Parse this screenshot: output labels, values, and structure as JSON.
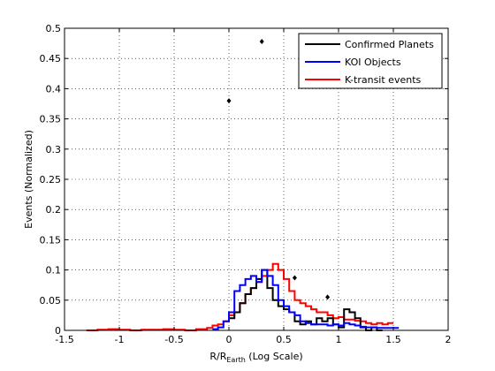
{
  "chart_data": {
    "type": "line",
    "title": "",
    "xlabel": {
      "main": "R/R",
      "sub": "Earth",
      "suffix": " (Log Scale)"
    },
    "ylabel": "Events (Normalized)",
    "xlim": [
      -1.5,
      2
    ],
    "ylim": [
      0,
      0.5
    ],
    "x_ticks": [
      -1.5,
      -1,
      -0.5,
      0,
      0.5,
      1,
      1.5,
      2
    ],
    "x_tick_labels": [
      "-1.5",
      "-1",
      "-0.5",
      "0",
      "0.5",
      "1",
      "1.5",
      "2"
    ],
    "y_ticks": [
      0,
      0.05,
      0.1,
      0.15,
      0.2,
      0.25,
      0.3,
      0.35,
      0.4,
      0.45,
      0.5
    ],
    "y_tick_labels": [
      "0",
      "0.05",
      "0.1",
      "0.15",
      "0.2",
      "0.25",
      "0.3",
      "0.35",
      "0.4",
      "0.45",
      "0.5"
    ],
    "grid": true,
    "legend_position": "top-right",
    "series": [
      {
        "name": "Confirmed Planets",
        "color": "#000000",
        "step": true,
        "x": [
          0.0,
          0.05,
          0.1,
          0.15,
          0.2,
          0.25,
          0.3,
          0.35,
          0.4,
          0.45,
          0.5,
          0.55,
          0.6,
          0.65,
          0.7,
          0.75,
          0.8,
          0.85,
          0.9,
          0.95,
          1.0,
          1.05,
          1.1,
          1.15,
          1.2,
          1.25,
          1.3,
          1.35
        ],
        "y": [
          0.02,
          0.03,
          0.045,
          0.06,
          0.07,
          0.085,
          0.1,
          0.07,
          0.05,
          0.04,
          0.035,
          0.03,
          0.015,
          0.01,
          0.015,
          0.01,
          0.02,
          0.015,
          0.02,
          0.01,
          0.005,
          0.035,
          0.03,
          0.02,
          0.005,
          0.0,
          0.005,
          0.0
        ]
      },
      {
        "name": "KOI Objects",
        "color": "#0000ff",
        "step": true,
        "x": [
          -0.15,
          -0.1,
          -0.05,
          0.0,
          0.05,
          0.1,
          0.15,
          0.2,
          0.25,
          0.3,
          0.35,
          0.4,
          0.45,
          0.5,
          0.55,
          0.6,
          0.65,
          0.7,
          0.75,
          0.8,
          0.85,
          0.9,
          0.95,
          1.0,
          1.05,
          1.1,
          1.15,
          1.2,
          1.25,
          1.3,
          1.35,
          1.4,
          1.45,
          1.5
        ],
        "y": [
          0.002,
          0.005,
          0.015,
          0.03,
          0.065,
          0.075,
          0.085,
          0.09,
          0.08,
          0.1,
          0.09,
          0.075,
          0.05,
          0.04,
          0.03,
          0.025,
          0.015,
          0.012,
          0.01,
          0.01,
          0.01,
          0.008,
          0.01,
          0.008,
          0.012,
          0.01,
          0.008,
          0.006,
          0.005,
          0.005,
          0.004,
          0.004,
          0.004,
          0.004
        ]
      },
      {
        "name": "K-transit events",
        "color": "#ff0000",
        "step": true,
        "x": [
          -1.3,
          -1.2,
          -1.1,
          -1.0,
          -0.9,
          -0.8,
          -0.7,
          -0.6,
          -0.5,
          -0.4,
          -0.3,
          -0.2,
          -0.15,
          -0.1,
          -0.05,
          0.0,
          0.05,
          0.1,
          0.15,
          0.2,
          0.25,
          0.3,
          0.35,
          0.4,
          0.45,
          0.5,
          0.55,
          0.6,
          0.65,
          0.7,
          0.75,
          0.8,
          0.85,
          0.9,
          0.95,
          1.0,
          1.05,
          1.1,
          1.15,
          1.2,
          1.25,
          1.3,
          1.35,
          1.4,
          1.45
        ],
        "y": [
          0.0,
          0.001,
          0.002,
          0.001,
          0.0,
          0.001,
          0.001,
          0.002,
          0.001,
          0.0,
          0.002,
          0.004,
          0.008,
          0.01,
          0.015,
          0.025,
          0.03,
          0.045,
          0.06,
          0.07,
          0.08,
          0.09,
          0.1,
          0.11,
          0.1,
          0.085,
          0.065,
          0.05,
          0.045,
          0.04,
          0.035,
          0.03,
          0.03,
          0.025,
          0.02,
          0.022,
          0.018,
          0.018,
          0.016,
          0.015,
          0.012,
          0.01,
          0.012,
          0.01,
          0.012
        ]
      }
    ],
    "markers": {
      "color": "#000000",
      "points": [
        {
          "x": 0.0,
          "y": 0.38
        },
        {
          "x": 0.3,
          "y": 0.478
        },
        {
          "x": 0.6,
          "y": 0.087
        },
        {
          "x": 0.9,
          "y": 0.055
        }
      ]
    }
  }
}
